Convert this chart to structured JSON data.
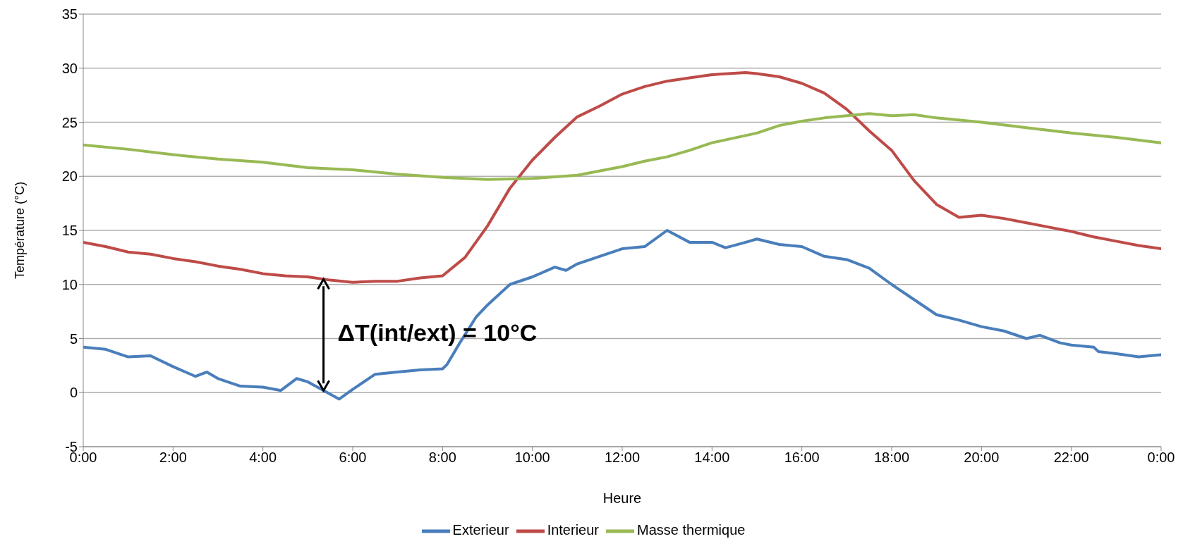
{
  "chart_data": {
    "type": "line",
    "xlabel": "Heure",
    "ylabel": "Température (°C)",
    "xlim": [
      0,
      24
    ],
    "xticks": [
      {
        "value": 0,
        "label": "0:00"
      },
      {
        "value": 2,
        "label": "2:00"
      },
      {
        "value": 4,
        "label": "4:00"
      },
      {
        "value": 6,
        "label": "6:00"
      },
      {
        "value": 8,
        "label": "8:00"
      },
      {
        "value": 10,
        "label": "10:00"
      },
      {
        "value": 12,
        "label": "12:00"
      },
      {
        "value": 14,
        "label": "14:00"
      },
      {
        "value": 16,
        "label": "16:00"
      },
      {
        "value": 18,
        "label": "18:00"
      },
      {
        "value": 20,
        "label": "20:00"
      },
      {
        "value": 22,
        "label": "22:00"
      },
      {
        "value": 24,
        "label": "0:00"
      }
    ],
    "ylim": [
      -5,
      35
    ],
    "yticks": [
      -5,
      0,
      5,
      10,
      15,
      20,
      25,
      30,
      35
    ],
    "grid": "y",
    "legend": "bottom",
    "marker": "none",
    "line_style": "solid",
    "annotations": [
      "ΔT(int/ext) = 10°C"
    ],
    "series": [
      {
        "name": "Exterieur",
        "color": "#4a7ebb",
        "x": [
          0,
          0.5,
          1,
          1.5,
          2,
          2.5,
          2.75,
          3,
          3.5,
          4,
          4.4,
          4.75,
          5,
          5.35,
          5.7,
          6,
          6.5,
          7,
          7.5,
          8,
          8.1,
          8.4,
          8.75,
          9,
          9.5,
          10,
          10.5,
          10.75,
          11,
          11.5,
          12,
          12.5,
          13,
          13.5,
          14,
          14.3,
          14.75,
          15,
          15.5,
          16,
          16.5,
          17,
          17.5,
          18,
          18.5,
          19,
          19.5,
          20,
          20.5,
          21,
          21.3,
          21.75,
          22,
          22.5,
          22.6,
          23,
          23.5,
          24
        ],
        "values": [
          4.2,
          4.0,
          3.3,
          3.4,
          2.4,
          1.5,
          1.9,
          1.3,
          0.6,
          0.5,
          0.2,
          1.3,
          1.0,
          0.2,
          -0.6,
          0.3,
          1.7,
          1.9,
          2.1,
          2.2,
          2.6,
          4.7,
          7.0,
          8.1,
          10.0,
          10.7,
          11.6,
          11.3,
          11.9,
          12.6,
          13.3,
          13.5,
          15.0,
          13.9,
          13.9,
          13.4,
          13.9,
          14.2,
          13.7,
          13.5,
          12.6,
          12.3,
          11.5,
          10.0,
          8.6,
          7.2,
          6.7,
          6.1,
          5.7,
          5.0,
          5.3,
          4.6,
          4.4,
          4.2,
          3.8,
          3.6,
          3.3,
          3.5
        ]
      },
      {
        "name": "Interieur",
        "color": "#be4b48",
        "x": [
          0,
          0.5,
          1,
          1.5,
          2,
          2.5,
          3,
          3.5,
          4,
          4.5,
          5,
          5.5,
          6,
          6.5,
          7,
          7.5,
          8,
          8.5,
          9,
          9.5,
          10,
          10.5,
          11,
          11.5,
          12,
          12.5,
          13,
          13.5,
          14,
          14.75,
          15,
          15.5,
          16,
          16.5,
          17,
          17.5,
          18,
          18.5,
          19,
          19.5,
          20,
          20.5,
          21,
          21.5,
          22,
          22.5,
          23,
          23.5,
          24
        ],
        "values": [
          13.9,
          13.5,
          13.0,
          12.8,
          12.4,
          12.1,
          11.7,
          11.4,
          11.0,
          10.8,
          10.7,
          10.4,
          10.2,
          10.3,
          10.3,
          10.6,
          10.8,
          12.5,
          15.4,
          18.9,
          21.5,
          23.6,
          25.5,
          26.5,
          27.6,
          28.3,
          28.8,
          29.1,
          29.4,
          29.6,
          29.5,
          29.2,
          28.6,
          27.7,
          26.2,
          24.2,
          22.4,
          19.6,
          17.4,
          16.2,
          16.4,
          16.1,
          15.7,
          15.3,
          14.9,
          14.4,
          14.0,
          13.6,
          13.3
        ]
      },
      {
        "name": "Masse thermique",
        "color": "#98b954",
        "x": [
          0,
          1,
          2,
          3,
          4,
          5,
          6,
          7,
          8,
          9,
          10,
          11,
          12,
          12.5,
          13,
          13.5,
          14,
          15,
          15.5,
          16,
          16.5,
          17,
          17.5,
          18,
          18.5,
          19,
          20,
          21,
          22,
          23,
          24
        ],
        "values": [
          22.9,
          22.5,
          22.0,
          21.6,
          21.3,
          20.8,
          20.6,
          20.2,
          19.9,
          19.7,
          19.8,
          20.1,
          20.9,
          21.4,
          21.8,
          22.4,
          23.1,
          24.0,
          24.7,
          25.1,
          25.4,
          25.6,
          25.8,
          25.6,
          25.7,
          25.4,
          25.0,
          24.5,
          24.0,
          23.6,
          23.1
        ]
      }
    ]
  }
}
